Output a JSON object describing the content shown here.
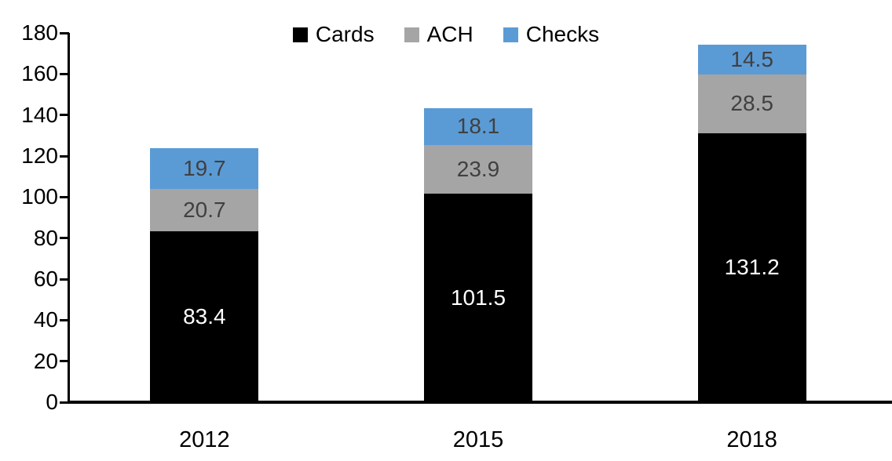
{
  "chart_data": {
    "type": "bar",
    "stacked": true,
    "title": "",
    "xlabel": "",
    "ylabel": "",
    "categories": [
      "2012",
      "2015",
      "2018"
    ],
    "series": [
      {
        "name": "Cards",
        "color": "#000000",
        "label_color": "#ffffff",
        "values": [
          83.4,
          101.5,
          131.2
        ]
      },
      {
        "name": "ACH",
        "color": "#A5A5A5",
        "label_color": "#404040",
        "values": [
          20.7,
          23.9,
          28.5
        ]
      },
      {
        "name": "Checks",
        "color": "#5B9BD5",
        "label_color": "#404040",
        "values": [
          19.7,
          18.1,
          14.5
        ]
      }
    ],
    "ylim": [
      0,
      180
    ],
    "ytick_step": 20,
    "yticks": [
      "0",
      "20",
      "40",
      "60",
      "80",
      "100",
      "120",
      "140",
      "160",
      "180"
    ],
    "legend_position": "top-center",
    "grid": false,
    "axis_color": "#000000"
  }
}
